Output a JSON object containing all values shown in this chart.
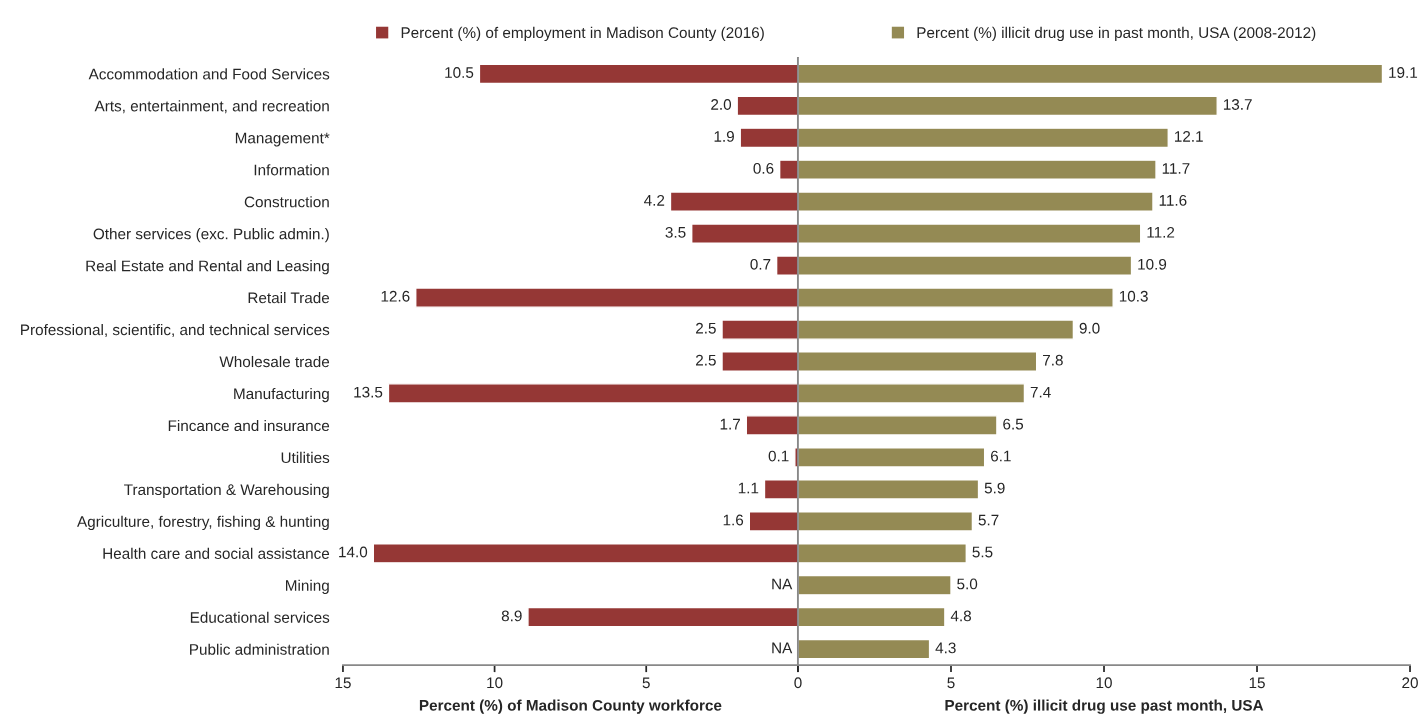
{
  "chart_data": [
    {
      "type": "bar",
      "orientation": "horizontal",
      "xlabel": "Percent (%) of Madison County workforce",
      "categories": [
        "Accommodation and Food Services",
        "Arts, entertainment, and recreation",
        "Management*",
        "Information",
        "Construction",
        "Other services (exc. Public admin.)",
        "Real Estate and Rental and Leasing",
        "Retail Trade",
        "Professional, scientific, and technical services",
        "Wholesale trade",
        "Manufacturing",
        "Fincance and insurance",
        "Utilities",
        "Transportation & Warehousing",
        "Agriculture, forestry, fishing & hunting",
        "Health care and social assistance",
        "Mining",
        "Educational services",
        "Public administration"
      ],
      "series": [
        {
          "name": "Percent (%) of employment in Madison County (2016)",
          "color": "#953735",
          "values": [
            10.5,
            2.0,
            1.9,
            0.6,
            4.2,
            3.5,
            0.7,
            12.6,
            2.5,
            2.5,
            13.5,
            1.7,
            0.1,
            1.1,
            1.6,
            14.0,
            null,
            8.9,
            null
          ],
          "value_labels": [
            "10.5",
            "2.0",
            "1.9",
            "0.6",
            "4.2",
            "3.5",
            "0.7",
            "12.6",
            "2.5",
            "2.5",
            "13.5",
            "1.7",
            "0.1",
            "1.1",
            "1.6",
            "14.0",
            "NA",
            "8.9",
            "NA"
          ]
        }
      ],
      "xlim": [
        15,
        0
      ],
      "xticks": [
        15,
        10,
        5,
        {
          "value": 0,
          "label": null
        }
      ],
      "legend": "top",
      "grid": false
    },
    {
      "type": "bar",
      "orientation": "horizontal",
      "xlabel": "Percent (%) illicit drug use past month, USA",
      "categories": [
        null,
        null,
        null,
        null,
        null,
        null,
        null,
        null,
        null,
        null,
        null,
        null,
        null,
        null,
        null,
        null,
        null,
        null,
        null
      ],
      "series": [
        {
          "name": "Percent (%) illicit drug use in past month, USA (2008-2012)",
          "color": "#948a54",
          "values": [
            19.1,
            13.7,
            12.1,
            11.7,
            11.6,
            11.2,
            10.9,
            10.3,
            9.0,
            7.8,
            7.4,
            6.5,
            6.1,
            5.9,
            5.7,
            5.5,
            5.0,
            4.8,
            4.3
          ],
          "value_labels": [
            "19.1",
            "13.7",
            "12.1",
            "11.7",
            "11.6",
            "11.2",
            "10.9",
            "10.3",
            "9.0",
            "7.8",
            "7.4",
            "6.5",
            "6.1",
            "5.9",
            "5.7",
            "5.5",
            "5.0",
            "4.8",
            "4.3"
          ]
        }
      ],
      "xlim": [
        0,
        20
      ],
      "xticks": [
        0,
        5,
        10,
        15,
        20
      ],
      "legend": "top",
      "grid": false
    }
  ]
}
